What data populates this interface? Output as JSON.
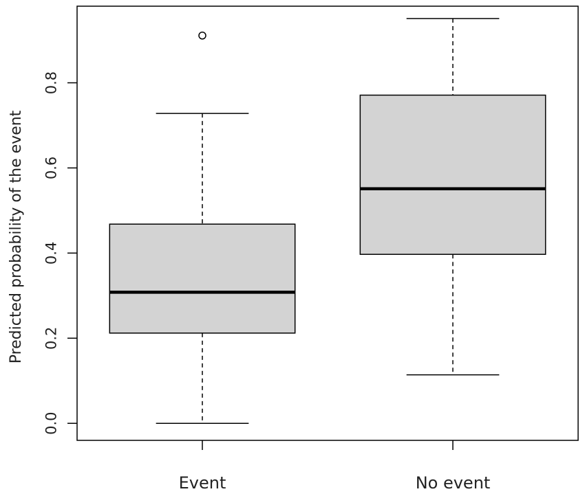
{
  "chart_data": {
    "type": "boxplot",
    "title": "",
    "xlabel": "",
    "ylabel": "Predicted probability of the event",
    "ylim": [
      -0.04,
      0.98
    ],
    "yticks": [
      0.0,
      0.2,
      0.4,
      0.6,
      0.8
    ],
    "ytick_labels": [
      "0.0",
      "0.2",
      "0.4",
      "0.6",
      "0.8"
    ],
    "grid": false,
    "legend": "none",
    "categories": [
      "Event",
      "No event"
    ],
    "boxes": [
      {
        "category": "Event",
        "whisker_low": 0.0,
        "q1": 0.212,
        "median": 0.308,
        "q3": 0.468,
        "whisker_high": 0.728,
        "outliers": [
          0.911
        ]
      },
      {
        "category": "No event",
        "whisker_low": 0.114,
        "q1": 0.397,
        "median": 0.551,
        "q3": 0.771,
        "whisker_high": 0.951,
        "outliers": []
      }
    ],
    "colors": {
      "box_fill": "#d3d3d3",
      "stroke": "#000000"
    }
  }
}
